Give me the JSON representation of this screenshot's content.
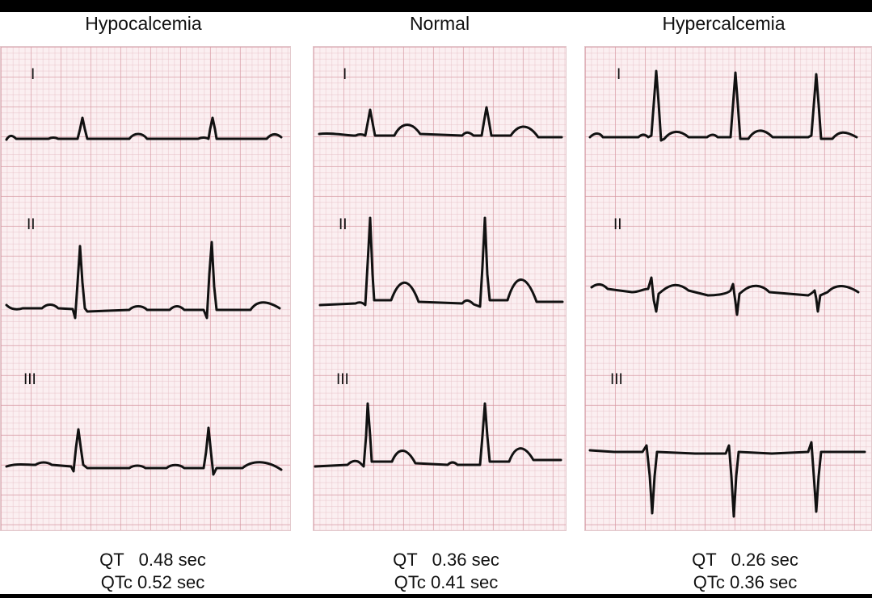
{
  "panels": [
    {
      "title": "Hypocalcemia",
      "leads": [
        "I",
        "II",
        "III"
      ],
      "qt": "QT   0.48 sec",
      "qtc": "QTc 0.52 sec"
    },
    {
      "title": "Normal",
      "leads": [
        "I",
        "II",
        "III"
      ],
      "qt": "QT   0.36 sec",
      "qtc": "QTc 0.41 sec"
    },
    {
      "title": "Hypercalcemia",
      "leads": [
        "I",
        "II",
        "III"
      ],
      "qt": "QT   0.26 sec",
      "qtc": "QTc 0.36 sec"
    }
  ],
  "colors": {
    "grid_background": "#fbeff1",
    "grid_lines": "#d696a0",
    "trace": "#111111"
  }
}
